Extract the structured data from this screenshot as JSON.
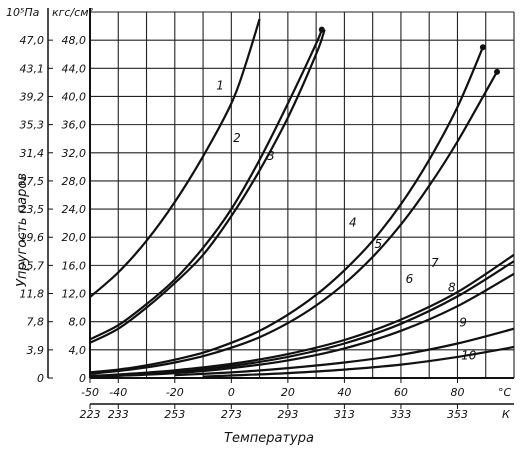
{
  "chart_data": {
    "type": "line",
    "ylabel": "Упругость паров",
    "xlabel": "Температура",
    "units": {
      "y_left": "10⁵Па",
      "y_right": "кгс/см²",
      "x_celsius": "°С",
      "x_kelvin": "К"
    },
    "xlim": [
      -50,
      100
    ],
    "ylim": [
      0,
      52
    ],
    "grid": true,
    "x_ticks_celsius": [
      "-50",
      "-40",
      "-20",
      "0",
      "20",
      "40",
      "60",
      "80"
    ],
    "x_tick_values_celsius": [
      -50,
      -40,
      -20,
      0,
      20,
      40,
      60,
      80
    ],
    "x_ticks_kelvin": [
      "223",
      "233",
      "253",
      "273",
      "293",
      "313",
      "333",
      "353"
    ],
    "x_tick_values_kelvin": [
      -50,
      -40,
      -20,
      0,
      20,
      40,
      60,
      80
    ],
    "y_ticks_kgf": [
      "0",
      "4,0",
      "8,0",
      "12,0",
      "16,0",
      "20,0",
      "24,0",
      "28,0",
      "32,0",
      "36,0",
      "40,0",
      "44,0",
      "48,0"
    ],
    "y_tick_values": [
      0,
      4,
      8,
      12,
      16,
      20,
      24,
      28,
      32,
      36,
      40,
      44,
      48
    ],
    "y_ticks_pa": [
      "0",
      "3,9",
      "7,8",
      "11,8",
      "15,7",
      "19,6",
      "23,5",
      "27,5",
      "31,4",
      "35,3",
      "39,2",
      "43,1",
      "47,0"
    ],
    "series": [
      {
        "name": "1",
        "x": [
          -50,
          -40,
          -30,
          -20,
          -10,
          0,
          5,
          10
        ],
        "y": [
          11.5,
          15,
          19.5,
          25,
          31.5,
          39,
          44.5,
          51
        ],
        "label_at": [
          -4,
          41
        ]
      },
      {
        "name": "2",
        "x": [
          -50,
          -40,
          -30,
          -20,
          -10,
          0,
          10,
          20,
          30,
          32
        ],
        "y": [
          5.5,
          7.5,
          10.5,
          14,
          18.5,
          24,
          31,
          39,
          47.5,
          49.5
        ],
        "end_marker": true,
        "label_at": [
          2,
          33.5
        ]
      },
      {
        "name": "3",
        "x": [
          -50,
          -40,
          -30,
          -20,
          -10,
          0,
          10,
          20,
          30,
          33
        ],
        "y": [
          5,
          7,
          10,
          13.5,
          17.5,
          23,
          29.5,
          37,
          46,
          49.5
        ],
        "label_at": [
          14,
          31
        ]
      },
      {
        "name": "4",
        "x": [
          -50,
          -40,
          -30,
          -20,
          -10,
          0,
          10,
          20,
          30,
          40,
          50,
          60,
          70,
          80,
          89
        ],
        "y": [
          0.8,
          1.2,
          1.8,
          2.6,
          3.6,
          5,
          6.7,
          9,
          11.8,
          15.3,
          19.5,
          24.7,
          31,
          38.5,
          47
        ],
        "end_marker": true,
        "label_at": [
          43,
          21.5
        ]
      },
      {
        "name": "5",
        "x": [
          -50,
          -40,
          -30,
          -20,
          -10,
          0,
          10,
          20,
          30,
          40,
          50,
          60,
          70,
          80,
          94
        ],
        "y": [
          0.6,
          1,
          1.5,
          2.2,
          3.1,
          4.3,
          5.8,
          7.8,
          10.3,
          13.4,
          17.2,
          21.8,
          27.3,
          33.6,
          43.5
        ],
        "end_marker": true,
        "label_at": [
          52,
          18.5
        ]
      },
      {
        "name": "6",
        "x": [
          -50,
          -40,
          -20,
          0,
          20,
          40,
          60,
          80,
          100
        ],
        "y": [
          0.3,
          0.5,
          1.1,
          2,
          3.4,
          5.4,
          8.3,
          12.2,
          17.5
        ],
        "label_at": [
          63,
          13.5
        ]
      },
      {
        "name": "7",
        "x": [
          -50,
          -40,
          -20,
          0,
          20,
          40,
          60,
          80,
          100
        ],
        "y": [
          0.2,
          0.4,
          0.9,
          1.7,
          3,
          4.9,
          7.7,
          11.6,
          16.6
        ],
        "label_at": [
          72,
          15.8
        ]
      },
      {
        "name": "8",
        "x": [
          -50,
          -40,
          -20,
          0,
          20,
          40,
          60,
          80,
          100
        ],
        "y": [
          0.1,
          0.3,
          0.7,
          1.4,
          2.5,
          4.2,
          6.7,
          10.2,
          14.8
        ],
        "label_at": [
          78,
          12.3
        ]
      },
      {
        "name": "9",
        "x": [
          -20,
          0,
          20,
          40,
          60,
          80,
          100
        ],
        "y": [
          0.4,
          0.8,
          1.4,
          2.2,
          3.3,
          4.9,
          7
        ],
        "label_at": [
          82,
          7.3
        ]
      },
      {
        "name": "10",
        "x": [
          -10,
          0,
          20,
          40,
          60,
          80,
          100
        ],
        "y": [
          0.2,
          0.35,
          0.7,
          1.2,
          1.9,
          3,
          4.4
        ],
        "label_at": [
          84,
          2.6
        ]
      }
    ]
  }
}
